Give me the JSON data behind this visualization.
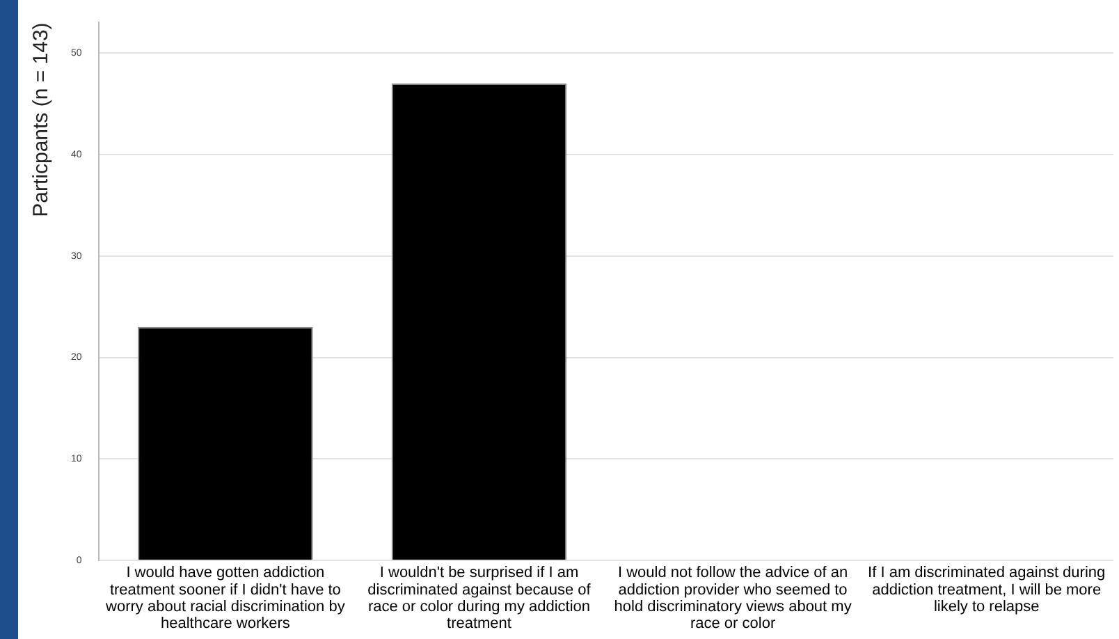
{
  "chart_data": {
    "type": "bar",
    "ylabel": "Particpants (n = 143)",
    "categories": [
      "I would have gotten addiction treatment sooner if I didn't have to worry about racial discrimination by healthcare workers",
      "I wouldn't be surprised if I am discriminated against because of race or color during my addiction treatment",
      "I would not follow the advice of an addiction provider who seemed to hold discriminatory views about my race or color",
      "If I am discriminated against during addiction treatment, I will be more likely to relapse"
    ],
    "values": [
      23,
      47,
      null,
      null
    ],
    "color": "#000000",
    "ylim": [
      0,
      53
    ],
    "yticks": [
      0,
      10,
      20,
      30,
      40,
      50
    ],
    "grid": "y",
    "legend": false
  }
}
